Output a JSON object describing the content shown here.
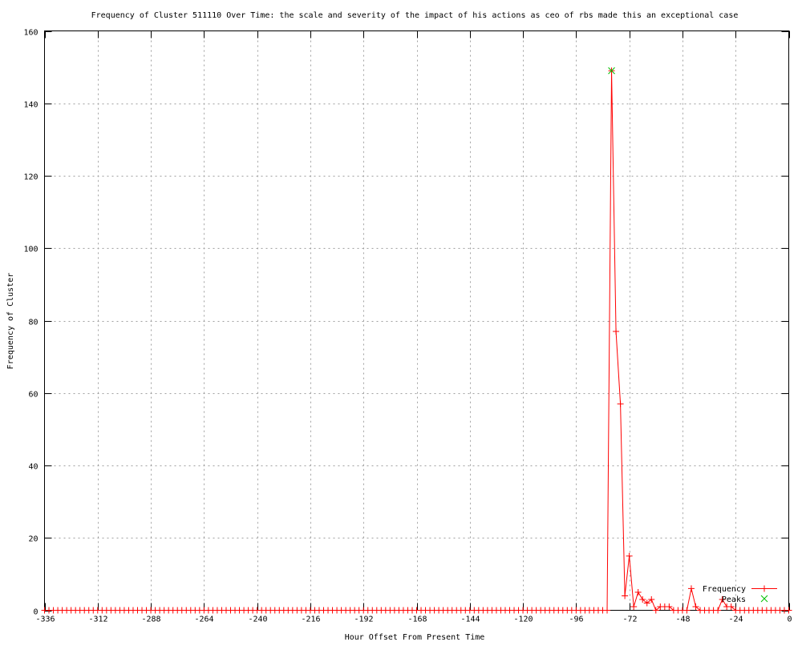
{
  "chart_data": {
    "type": "line",
    "title": "Frequency of Cluster 511110 Over Time: the scale and severity of the impact of his actions as ceo of rbs made this an exceptional case",
    "xlabel": "Hour Offset From Present Time",
    "ylabel": "Frequency of Cluster",
    "xlim": [
      -336,
      0
    ],
    "ylim": [
      0,
      160
    ],
    "xticks": [
      -336,
      -312,
      -288,
      -264,
      -240,
      -216,
      -192,
      -168,
      -144,
      -120,
      -96,
      -72,
      -48,
      -24,
      0
    ],
    "yticks": [
      0,
      20,
      40,
      60,
      80,
      100,
      120,
      140,
      160
    ],
    "grid": true,
    "legend_position": "bottom-right",
    "x": [
      -336,
      -334,
      -332,
      -330,
      -328,
      -326,
      -324,
      -322,
      -320,
      -318,
      -316,
      -314,
      -312,
      -310,
      -308,
      -306,
      -304,
      -302,
      -300,
      -298,
      -296,
      -294,
      -292,
      -290,
      -288,
      -286,
      -284,
      -282,
      -280,
      -278,
      -276,
      -274,
      -272,
      -270,
      -268,
      -266,
      -264,
      -262,
      -260,
      -258,
      -256,
      -254,
      -252,
      -250,
      -248,
      -246,
      -244,
      -242,
      -240,
      -238,
      -236,
      -234,
      -232,
      -230,
      -228,
      -226,
      -224,
      -222,
      -220,
      -218,
      -216,
      -214,
      -212,
      -210,
      -208,
      -206,
      -204,
      -202,
      -200,
      -198,
      -196,
      -194,
      -192,
      -190,
      -188,
      -186,
      -184,
      -182,
      -180,
      -178,
      -176,
      -174,
      -172,
      -170,
      -168,
      -166,
      -164,
      -162,
      -160,
      -158,
      -156,
      -154,
      -152,
      -150,
      -148,
      -146,
      -144,
      -142,
      -140,
      -138,
      -136,
      -134,
      -132,
      -130,
      -128,
      -126,
      -124,
      -122,
      -120,
      -118,
      -116,
      -114,
      -112,
      -110,
      -108,
      -106,
      -104,
      -102,
      -100,
      -98,
      -96,
      -94,
      -92,
      -90,
      -88,
      -86,
      -84,
      -82,
      -80,
      -78,
      -76,
      -74,
      -72,
      -70,
      -68,
      -66,
      -64,
      -62,
      -60,
      -58,
      -56,
      -54,
      -52,
      -50,
      -48,
      -46,
      -44,
      -42,
      -40,
      -38,
      -36,
      -34,
      -32,
      -30,
      -28,
      -26,
      -24,
      -22,
      -20,
      -18,
      -16,
      -14,
      -12,
      -10,
      -8,
      -6,
      -4,
      -2,
      0
    ],
    "series": [
      {
        "name": "Frequency",
        "color": "#ff0000",
        "marker": "plus",
        "values": [
          0,
          0,
          0,
          0,
          0,
          0,
          0,
          0,
          0,
          0,
          0,
          0,
          0,
          0,
          0,
          0,
          0,
          0,
          0,
          0,
          0,
          0,
          0,
          0,
          0,
          0,
          0,
          0,
          0,
          0,
          0,
          0,
          0,
          0,
          0,
          0,
          0,
          0,
          0,
          0,
          0,
          0,
          0,
          0,
          0,
          0,
          0,
          0,
          0,
          0,
          0,
          0,
          0,
          0,
          0,
          0,
          0,
          0,
          0,
          0,
          0,
          0,
          0,
          0,
          0,
          0,
          0,
          0,
          0,
          0,
          0,
          0,
          0,
          0,
          0,
          0,
          0,
          0,
          0,
          0,
          0,
          0,
          0,
          0,
          0,
          0,
          0,
          0,
          0,
          0,
          0,
          0,
          0,
          0,
          0,
          0,
          0,
          0,
          0,
          0,
          0,
          0,
          0,
          0,
          0,
          0,
          0,
          0,
          0,
          0,
          0,
          0,
          0,
          0,
          0,
          0,
          0,
          0,
          0,
          0,
          0,
          0,
          0,
          0,
          0,
          0,
          0,
          0,
          149,
          77,
          57,
          4,
          15,
          1,
          5,
          3,
          2,
          3,
          0,
          1,
          1,
          1,
          0,
          0,
          0,
          0,
          6,
          1,
          0,
          0,
          0,
          0,
          0,
          3,
          1,
          1,
          0,
          0,
          0,
          0,
          0,
          0,
          0,
          0,
          0,
          0,
          0,
          0,
          0
        ]
      },
      {
        "name": "Peaks",
        "color": "#00c000",
        "marker": "cross",
        "points": [
          {
            "x": -80,
            "y": 149
          }
        ]
      }
    ]
  }
}
